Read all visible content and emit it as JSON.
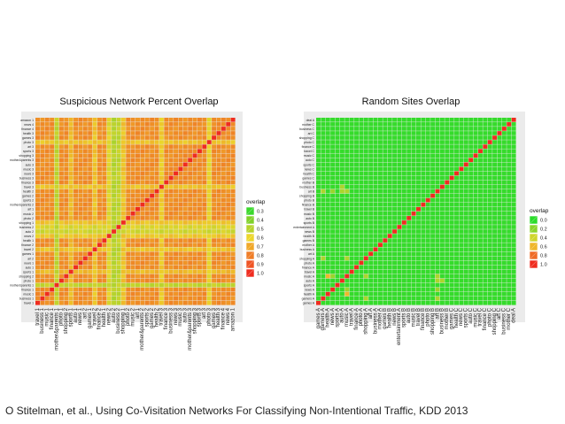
{
  "caption": "O Stitelman, et al., Using Co-Visitation Networks For Classifying Non-Intentional Traffic, KDD 2013",
  "chart_data": [
    {
      "type": "heatmap",
      "title": "Suspicious Network Percent Overlap",
      "n": 42,
      "legend": {
        "title": "overlap",
        "placement": "right",
        "entries": [
          "0.3",
          "0.4",
          "0.5",
          "0.6",
          "0.7",
          "0.8",
          "0.9",
          "1.0"
        ],
        "colors": [
          "#3bd82c",
          "#7fd12a",
          "#b6d32c",
          "#ecd62a",
          "#f0a727",
          "#ef7d26",
          "#ef5424",
          "#ef2c1f"
        ]
      },
      "x_tick_labels": [
        "travel 1",
        "business 1",
        "music 1",
        "finance 1",
        "mother&parents 1",
        "photo 1",
        "shopping 2",
        "sports 1",
        "auto 1",
        "news 1",
        "art 2",
        "games 1",
        "travel 2",
        "finance 2",
        "health 1",
        "news 2",
        "auto 2",
        "business 2",
        "shopping 1",
        "photo 2",
        "music 2",
        "art 1",
        "mother&parents 2",
        "sports 2",
        "games 2",
        "health 2",
        "travel 3",
        "finance 3",
        "business 3",
        "news 3",
        "music 3",
        "auto 3",
        "mother&parents 3",
        "shopping 3",
        "sports 3",
        "art 3",
        "photo 3",
        "games 3",
        "health 3",
        "finance 4",
        "news 4",
        "amazon 1"
      ],
      "y_tick_labels": [
        "travel 1",
        "business 1",
        "music 1",
        "finance 1",
        "mother&parents 1",
        "photo 1",
        "shopping 2",
        "sports 1",
        "auto 1",
        "news 1",
        "art 2",
        "games 1",
        "travel 2",
        "finance 2",
        "health 1",
        "news 2",
        "auto 2",
        "business 2",
        "shopping 1",
        "photo 2",
        "music 2",
        "art 1",
        "mother&parents 2",
        "sports 2",
        "games 2",
        "health 2",
        "travel 3",
        "finance 3",
        "business 3",
        "news 3",
        "music 3",
        "auto 3",
        "mother&parents 3",
        "shopping 3",
        "sports 3",
        "art 3",
        "photo 3",
        "games 3",
        "health 3",
        "finance 4",
        "news 4",
        "amazon 1"
      ],
      "base_value": 0.76,
      "low_rows": {
        "4": 0.52,
        "7": 0.66,
        "12": 0.64,
        "18": 0.64,
        "26": 0.64,
        "36": 0.64
      },
      "low_cols": {
        "15": 0.58,
        "16": 0.5,
        "17": 0.52,
        "26": 0.62,
        "36": 0.6
      },
      "diagonal_value": 1.0
    },
    {
      "type": "heatmap",
      "title": "Random Sites Overlap",
      "n": 42,
      "legend": {
        "title": "overlap",
        "placement": "right",
        "entries": [
          "0.0",
          "0.2",
          "0.4",
          "0.6",
          "0.8",
          "1.0"
        ],
        "colors": [
          "#2bdc2b",
          "#8ad42b",
          "#cfd52c",
          "#efb62a",
          "#ef6b25",
          "#ef2c1f"
        ]
      },
      "x_tick_labels": [
        "games A",
        "gamers A",
        "health A",
        "news A",
        "sports A",
        "auto A",
        "music A",
        "travel A",
        "finance A",
        "photo A",
        "shopping A",
        "art A",
        "business A",
        "mother A",
        "games B",
        "health B",
        "news B",
        "entertainment A",
        "sports B",
        "auto B",
        "music B",
        "travel B",
        "finance B",
        "photo B",
        "shopping B",
        "art B",
        "business B",
        "mother B",
        "games C",
        "health C",
        "news C",
        "sports C",
        "auto C",
        "music C",
        "travel C",
        "finance C",
        "photo C",
        "shopping C",
        "art C",
        "business C",
        "mother C",
        "deal A"
      ],
      "y_tick_labels": [
        "games A",
        "gamers A",
        "health A",
        "news A",
        "sports A",
        "auto A",
        "music A",
        "travel A",
        "finance A",
        "photo A",
        "shopping A",
        "art A",
        "business A",
        "mother A",
        "games B",
        "health B",
        "news B",
        "entertainment A",
        "sports B",
        "auto B",
        "music B",
        "travel B",
        "finance B",
        "photo B",
        "shopping B",
        "art B",
        "business B",
        "mother B",
        "games C",
        "health C",
        "news C",
        "sports C",
        "auto C",
        "music C",
        "travel C",
        "finance C",
        "photo C",
        "shopping C",
        "art C",
        "business C",
        "mother C",
        "deal A"
      ],
      "base_value": 0.02,
      "diagonal_value": 1.0,
      "highlights": [
        [
          10,
          1,
          0.3
        ],
        [
          10,
          6,
          0.3
        ],
        [
          25,
          1,
          0.3
        ],
        [
          25,
          3,
          0.25
        ],
        [
          25,
          6,
          0.3
        ],
        [
          5,
          25,
          0.3
        ],
        [
          5,
          26,
          0.3
        ],
        [
          2,
          6,
          0.6
        ],
        [
          3,
          6,
          0.25
        ],
        [
          6,
          25,
          0.3
        ],
        [
          1,
          25,
          0.3
        ]
      ]
    }
  ]
}
